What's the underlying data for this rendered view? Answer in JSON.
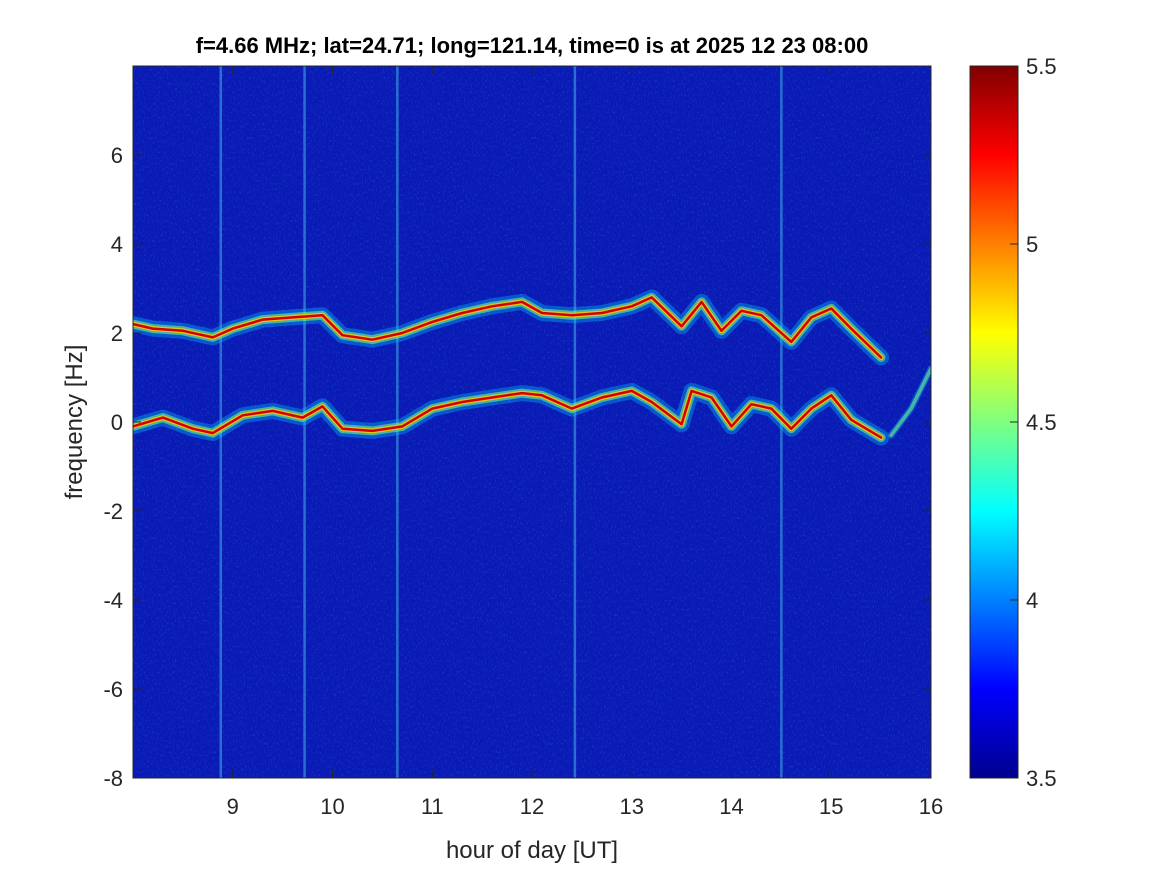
{
  "chart_data": {
    "type": "heatmap",
    "title": "f=4.66 MHz;  lat=24.71; long=121.14, time=0 is at 2025 12 23 08:00",
    "xlabel": "hour of day [UT]",
    "ylabel": "frequency [Hz]",
    "xlim": [
      8,
      16
    ],
    "ylim": [
      -8,
      8
    ],
    "xticks": [
      9,
      10,
      11,
      12,
      13,
      14,
      15,
      16
    ],
    "yticks": [
      -8,
      -6,
      -4,
      -2,
      0,
      2,
      4,
      6
    ],
    "colorbar": {
      "colormap": "jet",
      "clim": [
        3.5,
        5.5
      ],
      "ticks": [
        3.5,
        4,
        4.5,
        5,
        5.5
      ]
    },
    "background_level": 3.65,
    "traces": [
      {
        "name": "",
        "x": [
          8.0,
          8.2,
          8.5,
          8.8,
          9.0,
          9.3,
          9.6,
          9.9,
          10.1,
          10.4,
          10.7,
          11.0,
          11.3,
          11.6,
          11.9,
          12.1,
          12.4,
          12.7,
          13.0,
          13.2,
          13.5,
          13.7,
          13.9,
          14.1,
          14.3,
          14.6,
          14.8,
          15.0,
          15.2,
          15.5
        ],
        "y": [
          2.2,
          2.1,
          2.05,
          1.9,
          2.1,
          2.3,
          2.35,
          2.4,
          1.95,
          1.85,
          2.0,
          2.25,
          2.45,
          2.6,
          2.7,
          2.45,
          2.4,
          2.45,
          2.6,
          2.8,
          2.15,
          2.7,
          2.05,
          2.5,
          2.4,
          1.8,
          2.35,
          2.55,
          2.1,
          1.45
        ]
      },
      {
        "name": "",
        "x": [
          8.0,
          8.3,
          8.6,
          8.8,
          9.1,
          9.4,
          9.7,
          9.9,
          10.1,
          10.4,
          10.7,
          11.0,
          11.3,
          11.6,
          11.9,
          12.1,
          12.4,
          12.7,
          13.0,
          13.2,
          13.5,
          13.6,
          13.8,
          14.0,
          14.2,
          14.4,
          14.6,
          14.8,
          15.0,
          15.2,
          15.5
        ],
        "y": [
          -0.1,
          0.1,
          -0.15,
          -0.25,
          0.15,
          0.25,
          0.1,
          0.35,
          -0.15,
          -0.2,
          -0.1,
          0.3,
          0.45,
          0.55,
          0.65,
          0.6,
          0.3,
          0.55,
          0.7,
          0.45,
          -0.05,
          0.7,
          0.55,
          -0.1,
          0.4,
          0.3,
          -0.15,
          0.3,
          0.6,
          0.05,
          -0.35
        ]
      },
      {
        "name": "",
        "x": [
          15.6,
          15.8,
          16.0
        ],
        "y": [
          -0.3,
          0.3,
          1.2
        ]
      }
    ],
    "vertical_stripes_hours": [
      8.88,
      9.72,
      10.65,
      12.43,
      14.5
    ]
  }
}
